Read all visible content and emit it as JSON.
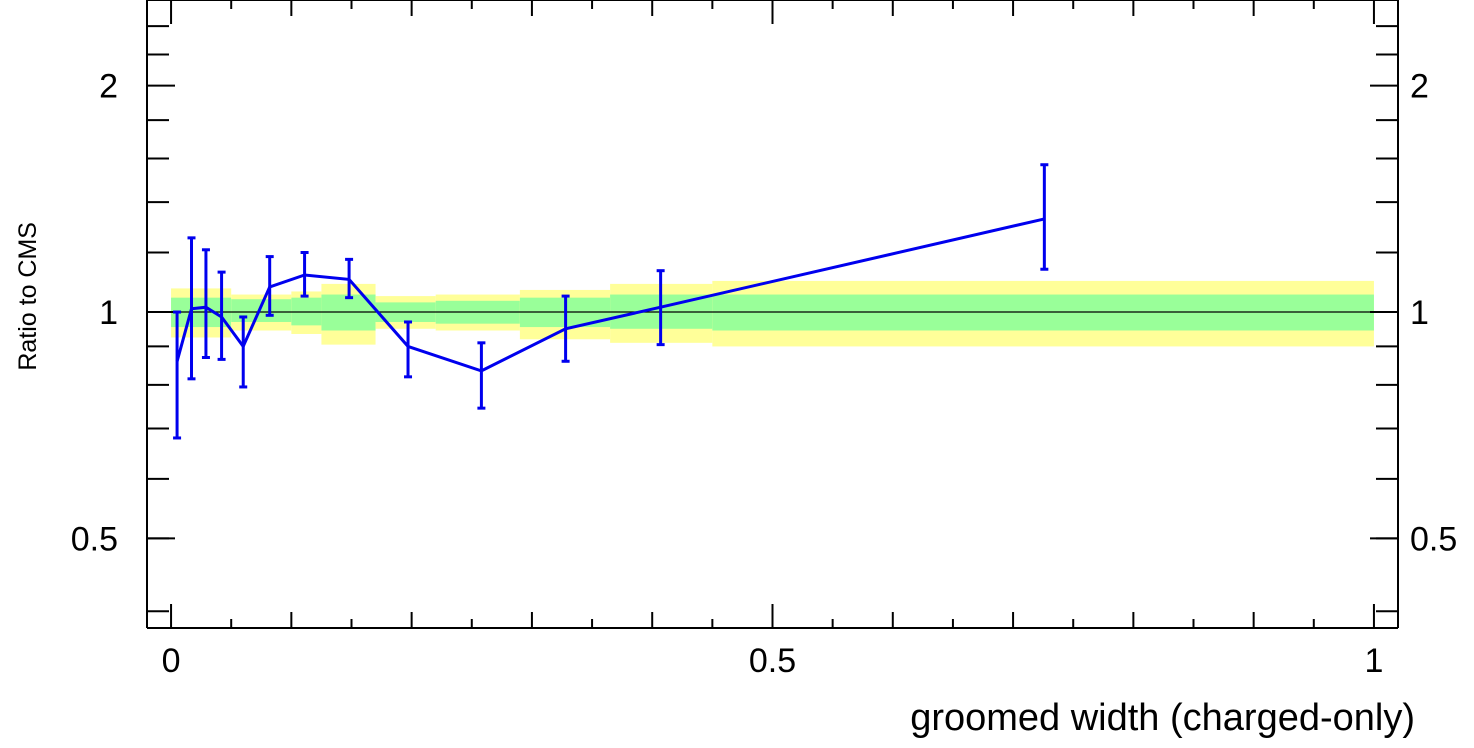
{
  "chart_data": {
    "type": "line",
    "title": "",
    "xlabel": "groomed width (charged-only)",
    "ylabel": "Ratio to CMS",
    "xlim": [
      -0.02,
      1.02
    ],
    "ylim": [
      0.38,
      2.6
    ],
    "y_scale": "log",
    "x_ticks": [
      {
        "value": 0,
        "label": "0"
      },
      {
        "value": 0.5,
        "label": "0.5"
      },
      {
        "value": 1,
        "label": "1"
      }
    ],
    "y_ticks": [
      {
        "value": 0.5,
        "label": "0.5"
      },
      {
        "value": 1,
        "label": "1"
      },
      {
        "value": 2,
        "label": "2"
      }
    ],
    "reference_line": 1,
    "colors": {
      "series": "#0000ee",
      "band_inner": "#99ff99",
      "band_outer": "#ffff99",
      "axis": "#000000"
    },
    "bands": [
      {
        "x0": 0.0,
        "x1": 0.05,
        "inner": [
          0.955,
          1.045
        ],
        "outer": [
          0.925,
          1.075
        ]
      },
      {
        "x0": 0.05,
        "x1": 0.1,
        "inner": [
          0.97,
          1.04
        ],
        "outer": [
          0.945,
          1.055
        ]
      },
      {
        "x0": 0.1,
        "x1": 0.125,
        "inner": [
          0.96,
          1.045
        ],
        "outer": [
          0.935,
          1.065
        ]
      },
      {
        "x0": 0.125,
        "x1": 0.17,
        "inner": [
          0.945,
          1.055
        ],
        "outer": [
          0.905,
          1.09
        ]
      },
      {
        "x0": 0.17,
        "x1": 0.22,
        "inner": [
          0.97,
          1.03
        ],
        "outer": [
          0.95,
          1.05
        ]
      },
      {
        "x0": 0.22,
        "x1": 0.29,
        "inner": [
          0.965,
          1.035
        ],
        "outer": [
          0.945,
          1.055
        ]
      },
      {
        "x0": 0.29,
        "x1": 0.365,
        "inner": [
          0.955,
          1.045
        ],
        "outer": [
          0.92,
          1.07
        ]
      },
      {
        "x0": 0.365,
        "x1": 0.45,
        "inner": [
          0.95,
          1.055
        ],
        "outer": [
          0.91,
          1.09
        ]
      },
      {
        "x0": 0.45,
        "x1": 1.0,
        "inner": [
          0.945,
          1.055
        ],
        "outer": [
          0.9,
          1.1
        ]
      }
    ],
    "series": [
      {
        "x": [
          0.005,
          0.017,
          0.029,
          0.042,
          0.06,
          0.082,
          0.111,
          0.148,
          0.197,
          0.258,
          0.328,
          0.407,
          0.726
        ],
        "y": [
          0.86,
          1.01,
          1.015,
          0.985,
          0.9,
          1.08,
          1.12,
          1.105,
          0.9,
          0.835,
          0.95,
          1.015,
          1.33
        ],
        "yerr_low": [
          0.18,
          0.195,
          0.145,
          0.12,
          0.105,
          0.09,
          0.07,
          0.06,
          0.08,
          0.09,
          0.09,
          0.11,
          0.19
        ],
        "yerr_high": [
          0.14,
          0.245,
          0.195,
          0.145,
          0.085,
          0.105,
          0.08,
          0.07,
          0.07,
          0.075,
          0.1,
          0.12,
          0.24
        ]
      }
    ]
  }
}
